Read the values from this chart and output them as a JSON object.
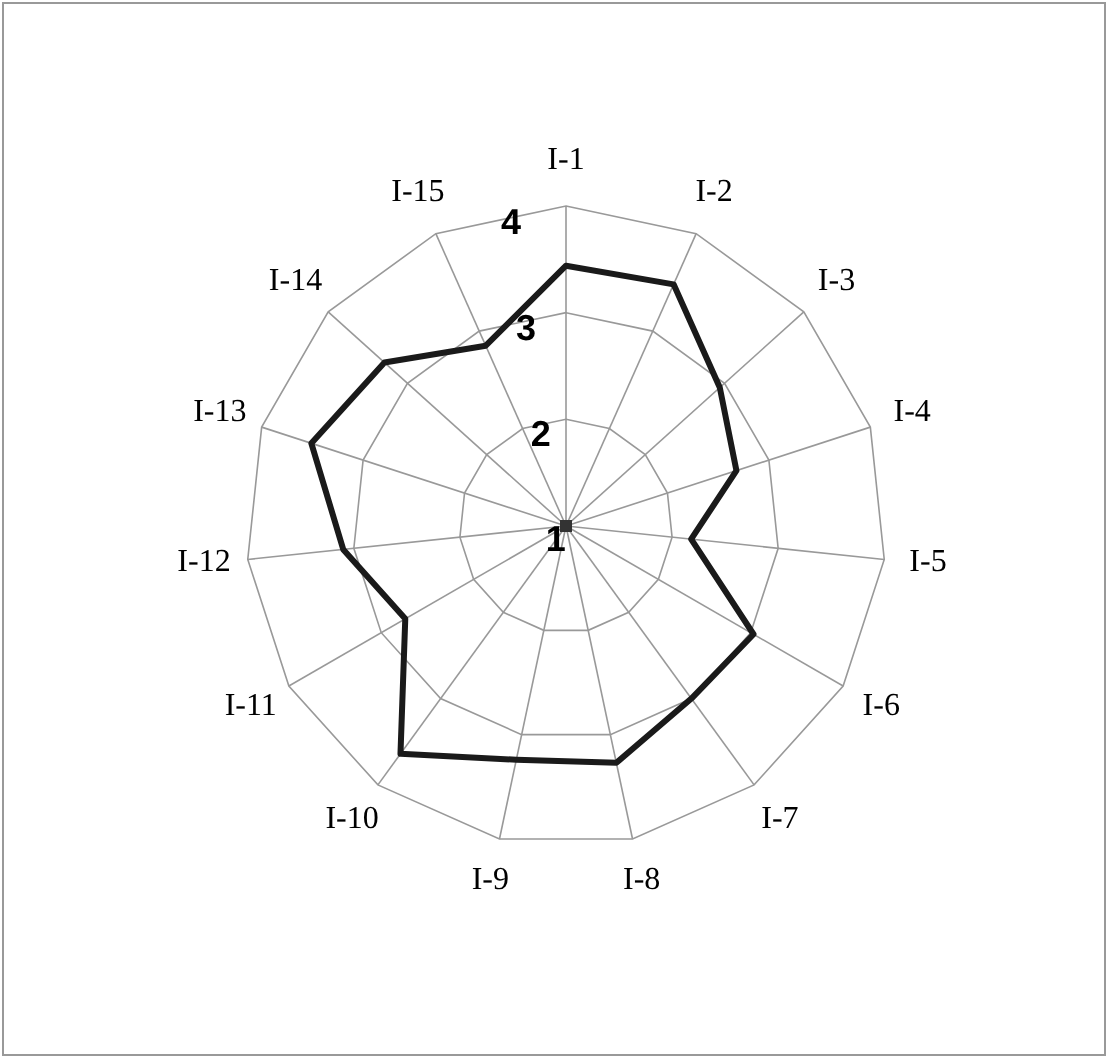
{
  "chart_data": {
    "type": "radar",
    "categories": [
      "I-1",
      "I-2",
      "I-3",
      "I-4",
      "I-5",
      "I-6",
      "I-7",
      "I-8",
      "I-9",
      "I-10",
      "I-11",
      "I-12",
      "I-13",
      "I-14",
      "I-15"
    ],
    "series": [
      {
        "color": "#1a1a1a",
        "values": [
          3.44,
          3.48,
          2.94,
          2.68,
          2.18,
          3.03,
          3.0,
          3.27,
          3.24,
          3.64,
          2.74,
          3.1,
          3.51,
          3.29,
          2.85
        ]
      }
    ],
    "ylim": [
      1,
      4
    ],
    "yticks": [
      1,
      2,
      3,
      4
    ],
    "grid": true,
    "marker": "none",
    "line_style": "solid"
  }
}
